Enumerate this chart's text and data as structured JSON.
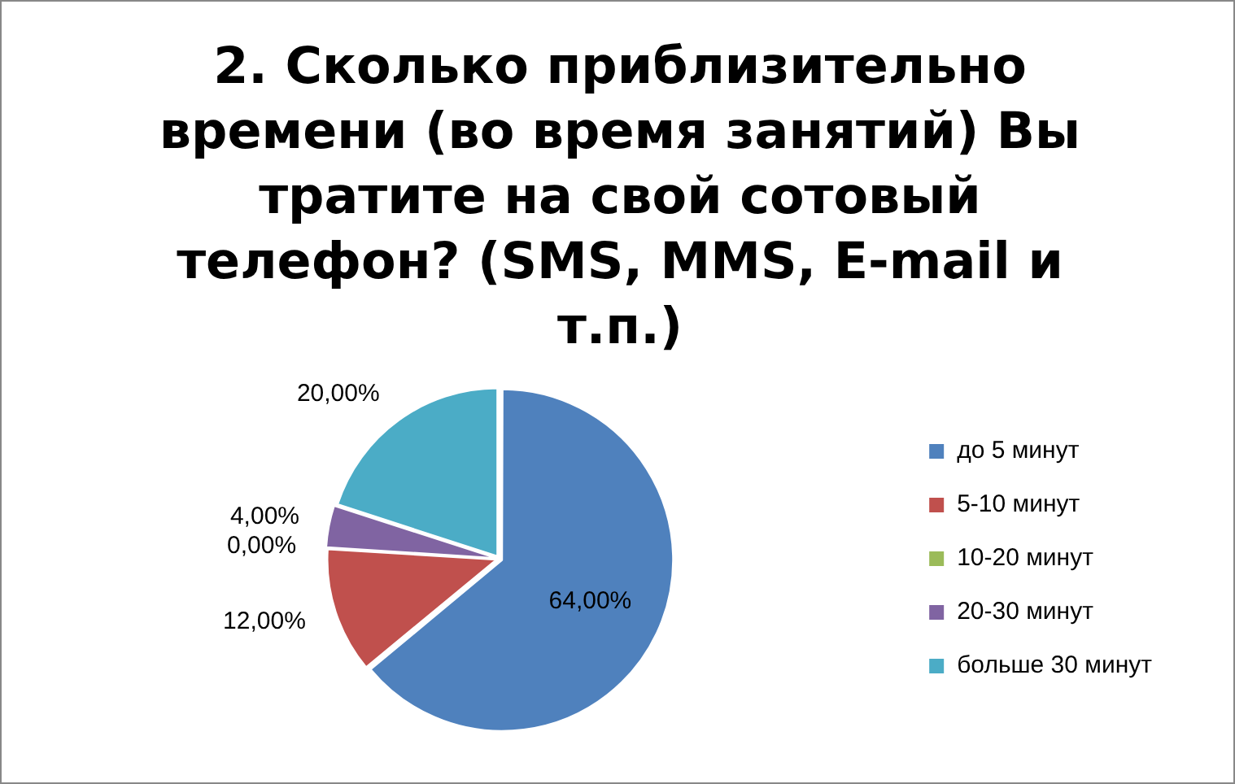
{
  "chart_data": {
    "type": "pie",
    "title": "2. Сколько приблизительно времени (во время занятий) Вы тратите на свой сотовый телефон? (SMS, MMS, E-mail  и т.п.)",
    "categories": [
      "до 5 минут",
      "5-10 минут",
      "10-20 минут",
      "20-30 минут",
      "больше 30 минут"
    ],
    "values": [
      64,
      12,
      0,
      4,
      20
    ],
    "colors": [
      "#4f81bd",
      "#c0504d",
      "#9bbb59",
      "#8064a2",
      "#4bacc6"
    ],
    "value_labels": [
      "64,00%",
      "12,00%",
      "0,00%",
      "4,00%",
      "20,00%"
    ],
    "legend": "right"
  }
}
